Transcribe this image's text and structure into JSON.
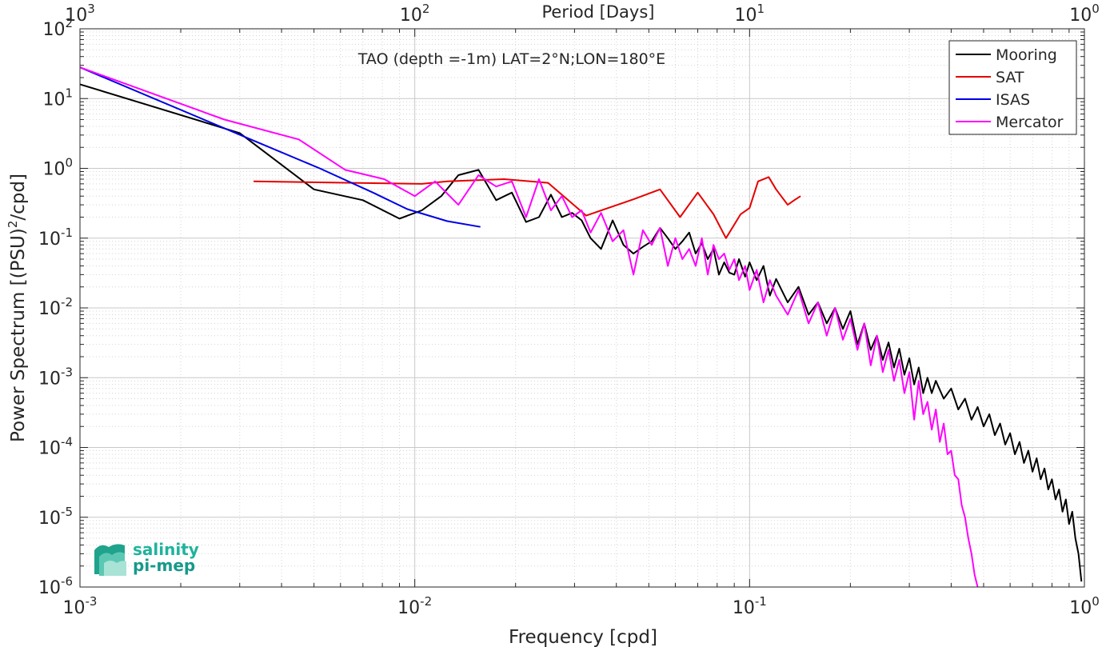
{
  "chart_data": {
    "type": "line",
    "title": "TAO (depth =-1m) LAT=2°N;LON=180°E",
    "xlabel": "Frequency [cpd]",
    "ylabel_main": "Power Spectrum [(PSU)",
    "ylabel_sup": "2",
    "ylabel_tail": "/cpd]",
    "top_axis_label": "Period [Days]",
    "x_scale": "log",
    "y_scale": "log",
    "xlim": [
      0.001,
      1
    ],
    "ylim": [
      1e-06,
      100
    ],
    "grid": true,
    "legend_position": "top-right",
    "x_ticks": [
      {
        "value": 0.001,
        "base": "10",
        "exp": "-3"
      },
      {
        "value": 0.01,
        "base": "10",
        "exp": "-2"
      },
      {
        "value": 0.1,
        "base": "10",
        "exp": "-1"
      },
      {
        "value": 1,
        "base": "10",
        "exp": "0"
      }
    ],
    "y_ticks": [
      {
        "value": 1e-06,
        "base": "10",
        "exp": "-6"
      },
      {
        "value": 1e-05,
        "base": "10",
        "exp": "-5"
      },
      {
        "value": 0.0001,
        "base": "10",
        "exp": "-4"
      },
      {
        "value": 0.001,
        "base": "10",
        "exp": "-3"
      },
      {
        "value": 0.01,
        "base": "10",
        "exp": "-2"
      },
      {
        "value": 0.1,
        "base": "10",
        "exp": "-1"
      },
      {
        "value": 1,
        "base": "10",
        "exp": "0"
      },
      {
        "value": 10,
        "base": "10",
        "exp": "1"
      },
      {
        "value": 100,
        "base": "10",
        "exp": "2"
      }
    ],
    "top_ticks": [
      {
        "period": 1000,
        "base": "10",
        "exp": "3"
      },
      {
        "period": 100,
        "base": "10",
        "exp": "2"
      },
      {
        "period": 10,
        "base": "10",
        "exp": "1"
      },
      {
        "period": 1,
        "base": "10",
        "exp": "0"
      }
    ],
    "series": [
      {
        "name": "Mooring",
        "color": "#000000",
        "x": [
          0.001,
          0.003,
          0.005,
          0.007,
          0.009,
          0.0105,
          0.012,
          0.0135,
          0.0155,
          0.0175,
          0.0195,
          0.0215,
          0.0235,
          0.0255,
          0.0275,
          0.0295,
          0.0315,
          0.0335,
          0.036,
          0.039,
          0.042,
          0.045,
          0.048,
          0.051,
          0.054,
          0.057,
          0.06,
          0.063,
          0.066,
          0.069,
          0.072,
          0.075,
          0.078,
          0.081,
          0.084,
          0.087,
          0.09,
          0.093,
          0.097,
          0.1,
          0.105,
          0.11,
          0.115,
          0.12,
          0.13,
          0.14,
          0.15,
          0.16,
          0.17,
          0.18,
          0.19,
          0.2,
          0.21,
          0.22,
          0.23,
          0.24,
          0.25,
          0.26,
          0.27,
          0.28,
          0.29,
          0.3,
          0.31,
          0.32,
          0.33,
          0.34,
          0.35,
          0.36,
          0.38,
          0.4,
          0.42,
          0.44,
          0.46,
          0.48,
          0.5,
          0.52,
          0.54,
          0.56,
          0.58,
          0.6,
          0.62,
          0.64,
          0.66,
          0.68,
          0.7,
          0.72,
          0.74,
          0.76,
          0.78,
          0.8,
          0.82,
          0.84,
          0.86,
          0.88,
          0.9,
          0.92,
          0.94,
          0.96,
          0.98
        ],
        "y": [
          16,
          3.2,
          0.5,
          0.35,
          0.19,
          0.25,
          0.4,
          0.8,
          0.95,
          0.35,
          0.45,
          0.17,
          0.2,
          0.42,
          0.2,
          0.23,
          0.18,
          0.1,
          0.07,
          0.18,
          0.08,
          0.06,
          0.075,
          0.09,
          0.14,
          0.1,
          0.07,
          0.09,
          0.12,
          0.06,
          0.085,
          0.05,
          0.07,
          0.03,
          0.045,
          0.032,
          0.03,
          0.05,
          0.028,
          0.045,
          0.025,
          0.04,
          0.015,
          0.026,
          0.012,
          0.02,
          0.008,
          0.012,
          0.006,
          0.01,
          0.005,
          0.009,
          0.003,
          0.006,
          0.0025,
          0.004,
          0.0018,
          0.0032,
          0.0014,
          0.0026,
          0.0011,
          0.0019,
          0.0008,
          0.0014,
          0.0006,
          0.001,
          0.0006,
          0.0009,
          0.0005,
          0.0007,
          0.00035,
          0.0005,
          0.00025,
          0.00038,
          0.0002,
          0.0003,
          0.00015,
          0.00022,
          0.00011,
          0.00016,
          8e-05,
          0.00012,
          6e-05,
          9e-05,
          4.5e-05,
          7e-05,
          3.5e-05,
          5e-05,
          2.5e-05,
          3.5e-05,
          1.8e-05,
          2.5e-05,
          1.2e-05,
          1.8e-05,
          8e-06,
          1.2e-05,
          5e-06,
          3e-06,
          1.2e-06
        ]
      },
      {
        "name": "SAT",
        "color": "#e60000",
        "x": [
          0.0033,
          0.0105,
          0.0125,
          0.0185,
          0.025,
          0.0325,
          0.045,
          0.054,
          0.062,
          0.07,
          0.078,
          0.085,
          0.094,
          0.1,
          0.106,
          0.114,
          0.12,
          0.13,
          0.136,
          0.142
        ],
        "y": [
          0.65,
          0.6,
          0.65,
          0.7,
          0.62,
          0.21,
          0.36,
          0.5,
          0.2,
          0.45,
          0.22,
          0.1,
          0.22,
          0.27,
          0.65,
          0.75,
          0.5,
          0.3,
          0.35,
          0.4
        ]
      },
      {
        "name": "ISAS",
        "color": "#0000e6",
        "x": [
          0.001,
          0.0033,
          0.0052,
          0.0075,
          0.0095,
          0.0125,
          0.0157
        ],
        "y": [
          28,
          2.5,
          1.0,
          0.45,
          0.26,
          0.175,
          0.145
        ]
      },
      {
        "name": "Mercator",
        "color": "#ff00ff",
        "x": [
          0.001,
          0.0027,
          0.0045,
          0.0062,
          0.0081,
          0.01,
          0.0115,
          0.0135,
          0.0155,
          0.0175,
          0.0195,
          0.0215,
          0.0235,
          0.0255,
          0.0275,
          0.0295,
          0.0315,
          0.0335,
          0.036,
          0.039,
          0.042,
          0.045,
          0.048,
          0.051,
          0.054,
          0.057,
          0.06,
          0.063,
          0.066,
          0.069,
          0.072,
          0.075,
          0.078,
          0.081,
          0.084,
          0.087,
          0.09,
          0.093,
          0.097,
          0.1,
          0.105,
          0.11,
          0.115,
          0.12,
          0.13,
          0.14,
          0.15,
          0.16,
          0.17,
          0.18,
          0.19,
          0.2,
          0.21,
          0.22,
          0.23,
          0.24,
          0.25,
          0.26,
          0.27,
          0.28,
          0.29,
          0.3,
          0.31,
          0.32,
          0.33,
          0.34,
          0.35,
          0.36,
          0.37,
          0.38,
          0.39,
          0.4,
          0.41,
          0.42,
          0.43,
          0.44,
          0.45,
          0.46,
          0.47,
          0.48
        ],
        "y": [
          28,
          5,
          2.6,
          0.95,
          0.7,
          0.4,
          0.65,
          0.3,
          0.8,
          0.55,
          0.65,
          0.2,
          0.7,
          0.25,
          0.4,
          0.2,
          0.25,
          0.12,
          0.23,
          0.09,
          0.13,
          0.03,
          0.13,
          0.08,
          0.14,
          0.04,
          0.1,
          0.05,
          0.07,
          0.04,
          0.1,
          0.03,
          0.08,
          0.05,
          0.06,
          0.035,
          0.05,
          0.025,
          0.04,
          0.018,
          0.035,
          0.012,
          0.025,
          0.015,
          0.008,
          0.018,
          0.006,
          0.012,
          0.004,
          0.01,
          0.0035,
          0.007,
          0.0025,
          0.006,
          0.0015,
          0.004,
          0.0012,
          0.0025,
          0.0009,
          0.0018,
          0.0006,
          0.0012,
          0.00025,
          0.0009,
          0.0003,
          0.00045,
          0.00018,
          0.00035,
          0.00012,
          0.00022,
          8e-05,
          9e-05,
          4e-05,
          3.5e-05,
          1.5e-05,
          1e-05,
          5e-06,
          3e-06,
          1.5e-06,
          1e-06
        ]
      }
    ]
  },
  "logo": {
    "line1": "salinity",
    "line2": "pi-mep",
    "color": "#1fb39c"
  }
}
